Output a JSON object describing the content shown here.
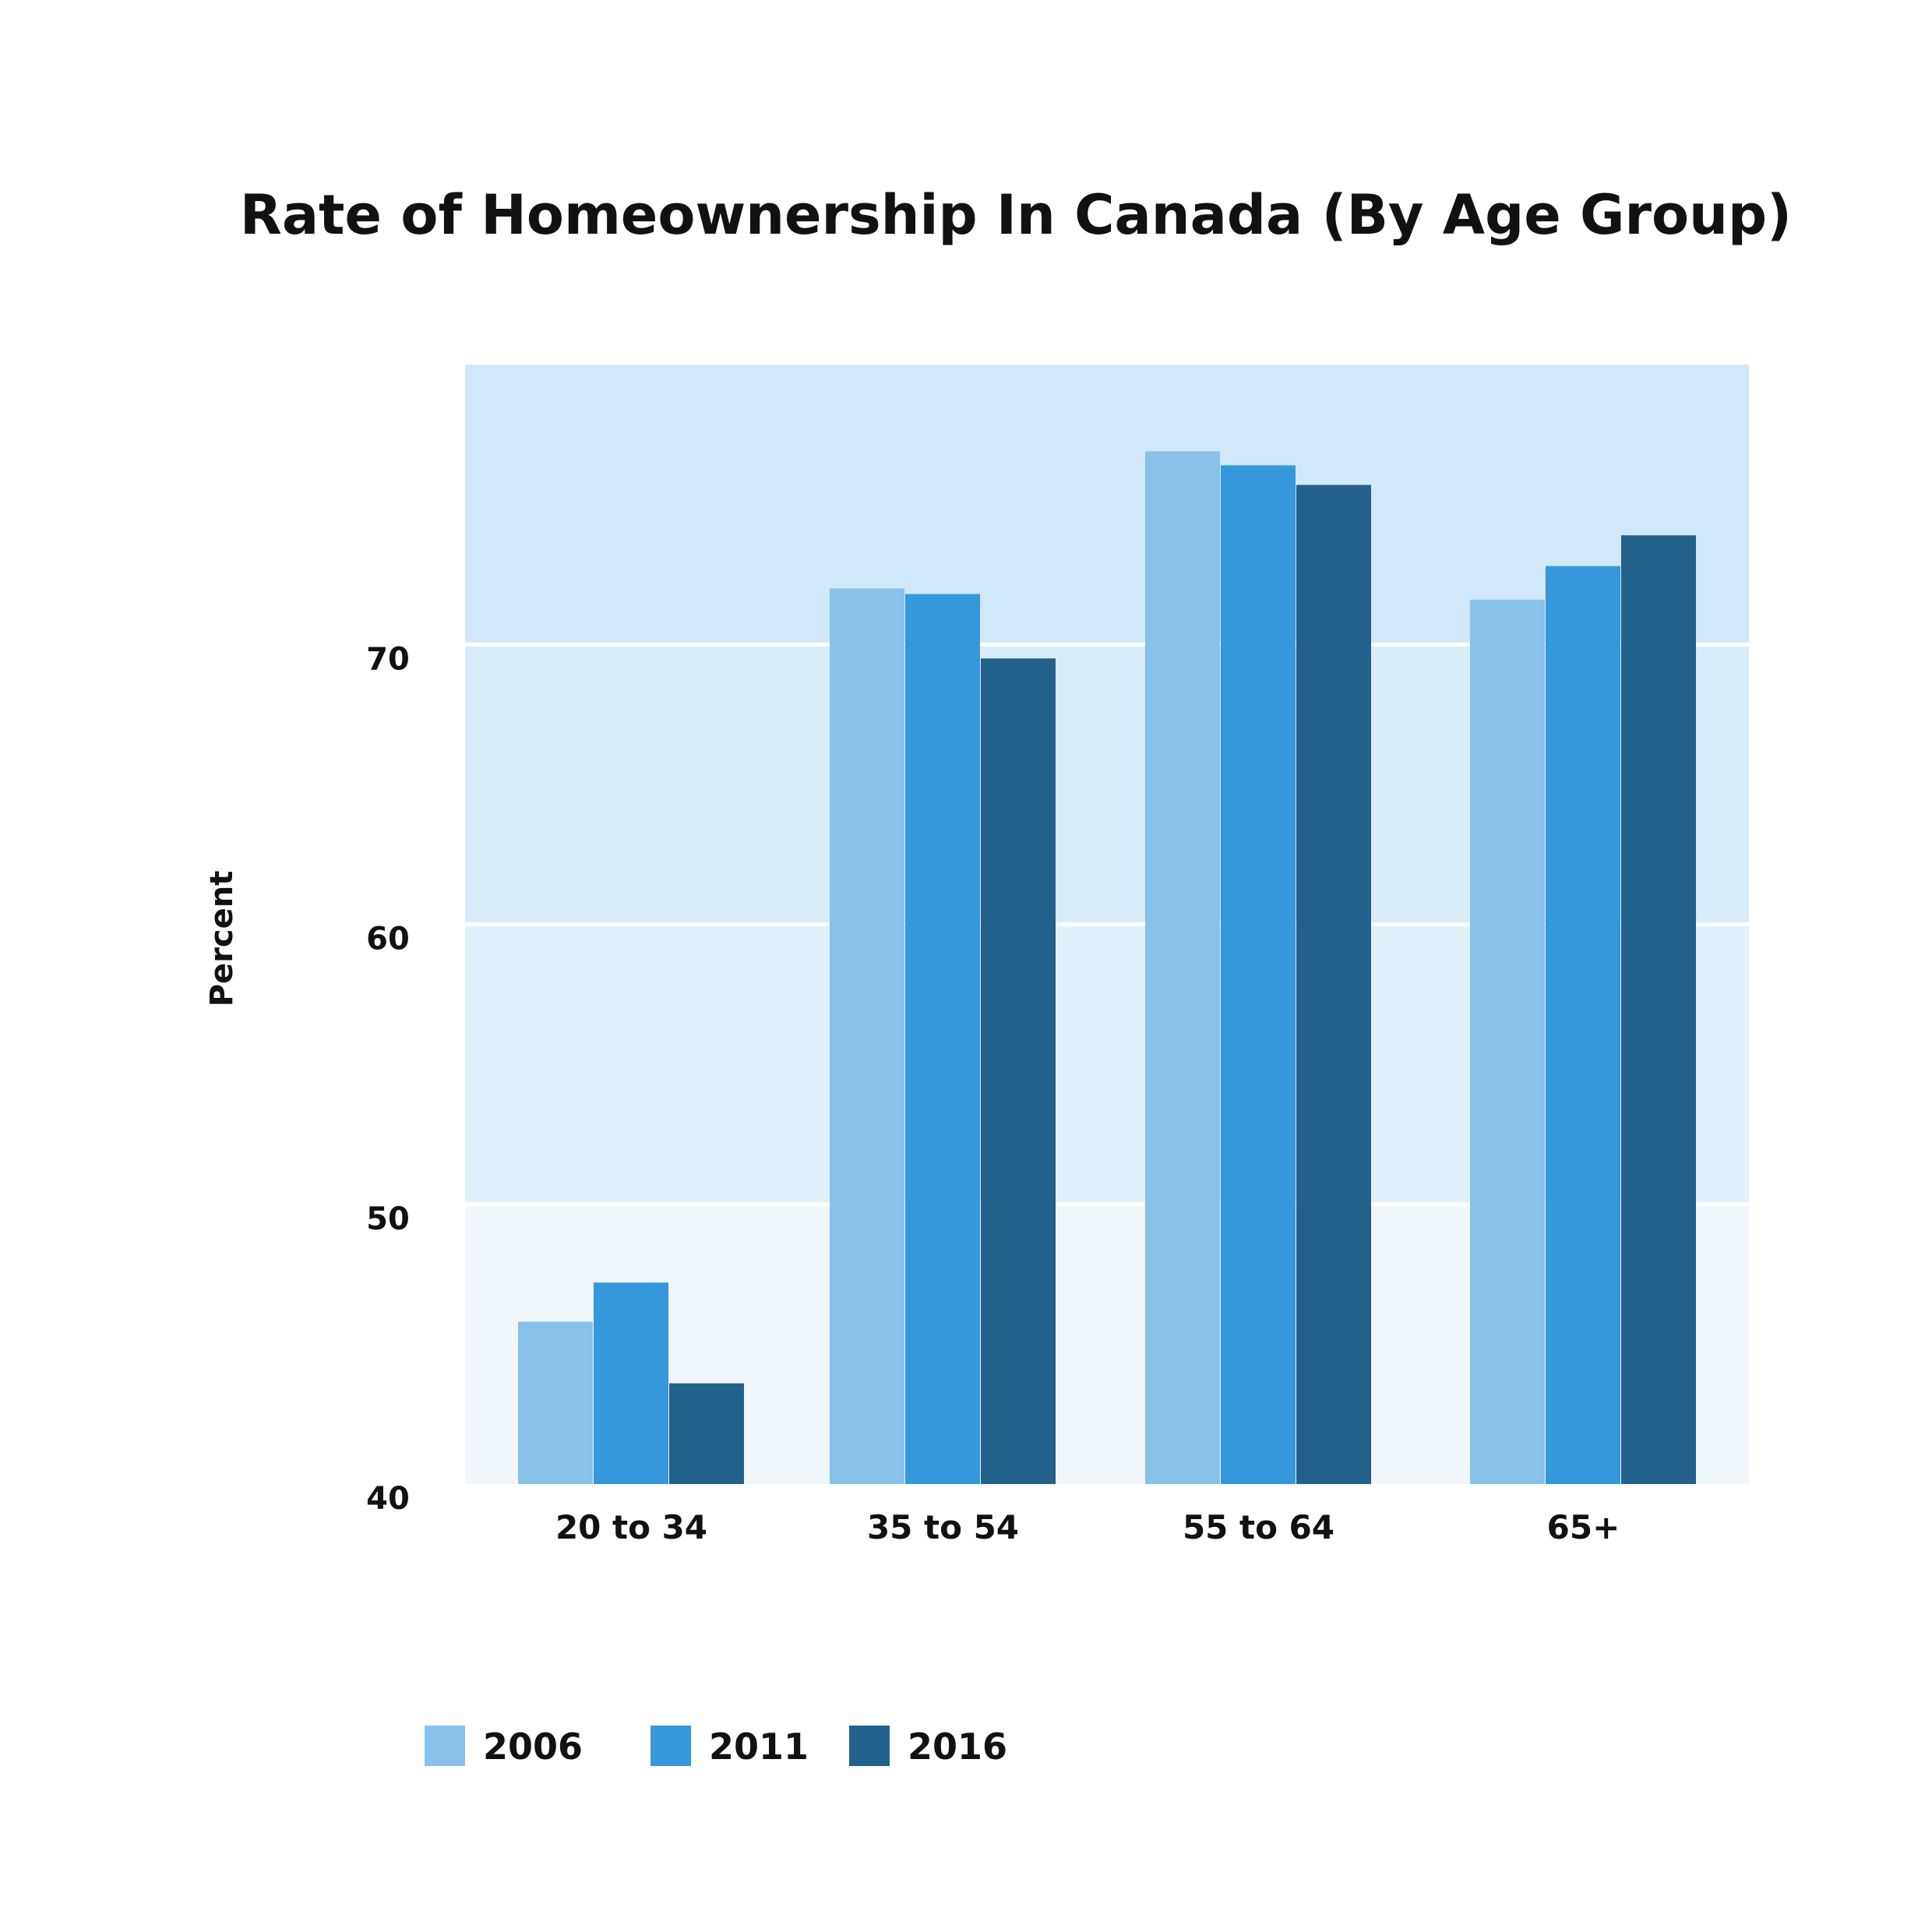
{
  "chart_data": {
    "type": "bar",
    "title": "Rate of Homeownership In Canada (By Age Group)",
    "xlabel": "",
    "ylabel": "Percent",
    "ylim": [
      40,
      80
    ],
    "yticks": [
      40,
      50,
      60,
      70
    ],
    "grid": true,
    "legend_position": "bottom-left",
    "categories": [
      "20 to 34",
      "35 to 54",
      "55 to 64",
      "65+"
    ],
    "series": [
      {
        "name": "2006",
        "color": "#88c1e9",
        "values": [
          45.8,
          72.0,
          76.9,
          71.6
        ]
      },
      {
        "name": "2011",
        "color": "#3697db",
        "values": [
          47.2,
          71.8,
          76.4,
          72.8
        ]
      },
      {
        "name": "2016",
        "color": "#21618c",
        "values": [
          43.6,
          69.5,
          75.7,
          73.9
        ]
      }
    ],
    "band_colors": [
      "#eff7fd",
      "#e1f1fb",
      "#d8ecf9",
      "#d0e8f9"
    ]
  }
}
